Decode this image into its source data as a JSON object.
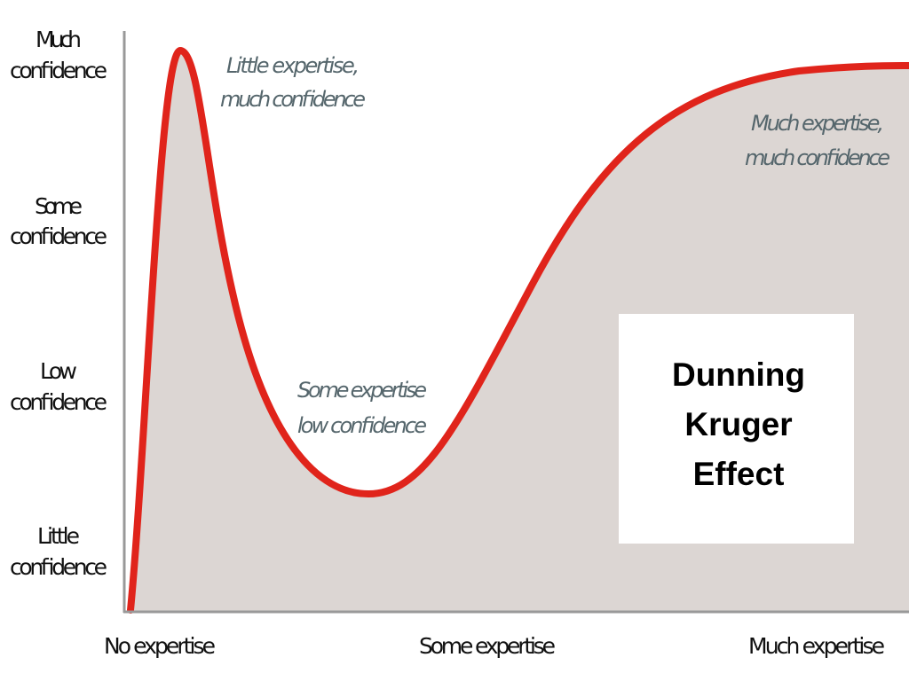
{
  "y_axis": {
    "labels": [
      [
        "Much",
        "confidence"
      ],
      [
        "Some",
        "confidence"
      ],
      [
        "Low",
        "confidence"
      ],
      [
        "Little",
        "confidence"
      ]
    ]
  },
  "x_axis": {
    "labels": [
      "No expertise",
      "Some expertise",
      "Much expertise"
    ]
  },
  "annotations": [
    [
      "Little expertise,",
      "much confidence"
    ],
    [
      "Some expertise",
      "low confidence"
    ],
    [
      "Much expertise,",
      "much confidence"
    ]
  ],
  "title": [
    "Dunning",
    "Kruger",
    "Effect"
  ]
}
